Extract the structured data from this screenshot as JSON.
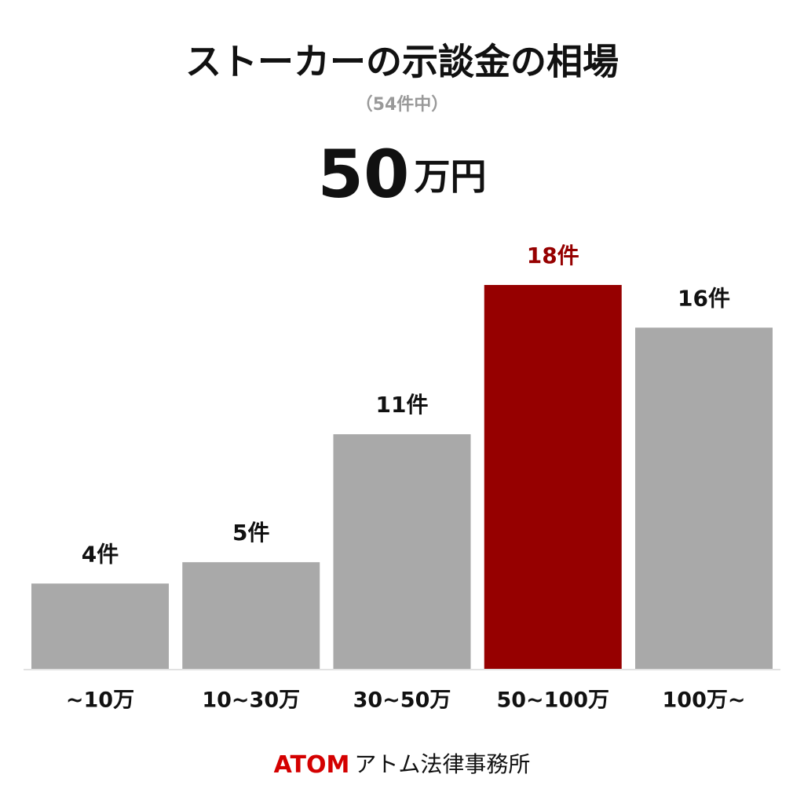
{
  "chart_data": {
    "type": "bar",
    "title": "ストーカーの示談金の相場",
    "subtitle": "（54件中）",
    "headline": {
      "number": "50",
      "unit": "万円"
    },
    "categories": [
      "~10万",
      "10~30万",
      "30~50万",
      "50~100万",
      "100万~"
    ],
    "values": [
      4,
      5,
      11,
      18,
      16
    ],
    "value_labels": [
      "4件",
      "5件",
      "11件",
      "18件",
      "16件"
    ],
    "colors": [
      "#a9a9a9",
      "#a9a9a9",
      "#a9a9a9",
      "#960000",
      "#a9a9a9"
    ],
    "label_colors": [
      "#111111",
      "#111111",
      "#111111",
      "#960000",
      "#111111"
    ],
    "footer": {
      "brand": "ATOM",
      "name": "アトム法律事務所"
    }
  }
}
